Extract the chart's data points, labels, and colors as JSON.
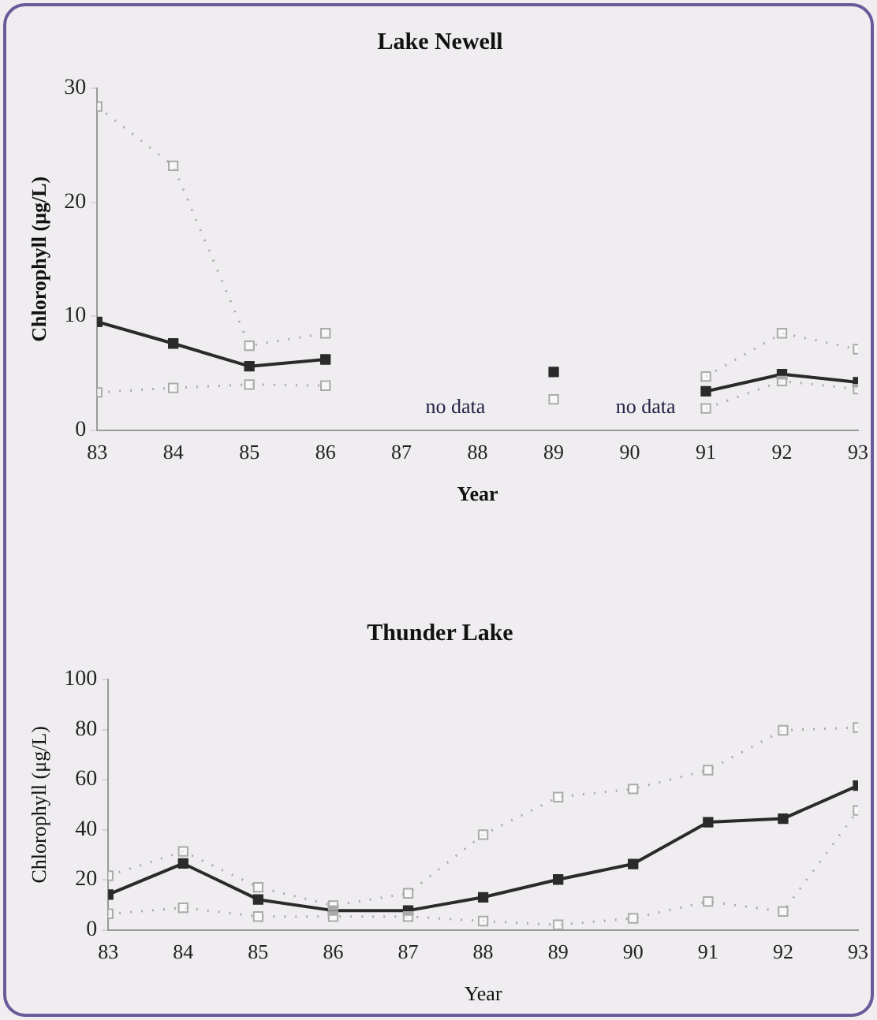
{
  "chart_data": [
    {
      "type": "line",
      "title": "Lake Newell",
      "xlabel": "Year",
      "ylabel": "Chlorophyll (μg/L)",
      "x": [
        83,
        84,
        85,
        86,
        87,
        88,
        89,
        90,
        91,
        92,
        93
      ],
      "xlim": [
        83,
        93
      ],
      "xticks": [
        83,
        84,
        85,
        86,
        87,
        88,
        89,
        90,
        91,
        92,
        93
      ],
      "ylim": [
        0,
        30
      ],
      "yticks": [
        0,
        10,
        20,
        30
      ],
      "legend": false,
      "series": [
        {
          "color": "#aaaaaa",
          "marker": "square",
          "line_style": "dotted",
          "values": [
            28.4,
            23.2,
            7.4,
            8.5,
            null,
            null,
            null,
            null,
            4.7,
            8.5,
            7.1
          ]
        },
        {
          "color": "#aaaaaa",
          "marker": "square",
          "line_style": "dotted",
          "values": [
            3.3,
            3.7,
            4.0,
            3.9,
            null,
            null,
            2.7,
            null,
            1.9,
            4.3,
            3.6
          ]
        },
        {
          "color": "#2a2a2a",
          "marker": "square",
          "line_style": "solid",
          "values": [
            9.5,
            7.6,
            5.6,
            6.2,
            null,
            null,
            5.1,
            null,
            3.4,
            4.9,
            4.2
          ]
        }
      ],
      "annotations": [
        "no data",
        "no data"
      ]
    },
    {
      "type": "line",
      "title": "Thunder Lake",
      "xlabel": "Year",
      "ylabel": "Chlorophyll (μg/L)",
      "x": [
        83,
        84,
        85,
        86,
        87,
        88,
        89,
        90,
        91,
        92,
        93
      ],
      "xlim": [
        83,
        93
      ],
      "xticks": [
        83,
        84,
        85,
        86,
        87,
        88,
        89,
        90,
        91,
        92,
        93
      ],
      "ylim": [
        0,
        100
      ],
      "yticks": [
        0,
        20,
        40,
        60,
        80,
        100
      ],
      "legend": false,
      "series": [
        {
          "color": "#aaaaaa",
          "marker": "square",
          "line_style": "dotted",
          "values": [
            21.6,
            31.3,
            17,
            9.7,
            14.6,
            38,
            53,
            56.3,
            63.8,
            79.7,
            80.8
          ]
        },
        {
          "color": "#aaaaaa",
          "marker": "square",
          "line_style": "dotted",
          "values": [
            6.4,
            8.8,
            5.3,
            5.3,
            5.3,
            3.5,
            2.0,
            4.6,
            11.3,
            7.3,
            47.7
          ]
        },
        {
          "color": "#2a2a2a",
          "marker": "square",
          "line_style": "solid",
          "values": [
            14.1,
            26.5,
            12.1,
            7.7,
            7.7,
            13.0,
            20.1,
            26.3,
            43.0,
            44.4,
            57.6
          ]
        }
      ]
    }
  ]
}
